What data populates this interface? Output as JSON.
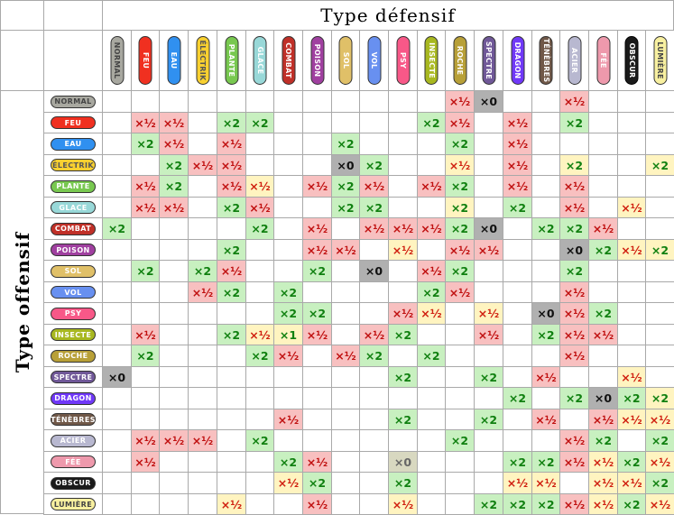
{
  "title_defense": "Type défensif",
  "title_attack": "Type offensif",
  "types": [
    {
      "label": "NORMAL",
      "color": "#a8a8a0",
      "text": "#444444"
    },
    {
      "label": "FEU",
      "color": "#f03020",
      "text": "#ffffff"
    },
    {
      "label": "EAU",
      "color": "#3090f0",
      "text": "#ffffff"
    },
    {
      "label": "ÉLECTRIK",
      "color": "#f8d030",
      "text": "#555555"
    },
    {
      "label": "PLANTE",
      "color": "#78c850",
      "text": "#ffffff"
    },
    {
      "label": "GLACE",
      "color": "#98d8d8",
      "text": "#ffffff"
    },
    {
      "label": "COMBAT",
      "color": "#c03028",
      "text": "#ffffff"
    },
    {
      "label": "POISON",
      "color": "#a040a0",
      "text": "#ffffff"
    },
    {
      "label": "SOL",
      "color": "#e0c068",
      "text": "#ffffff"
    },
    {
      "label": "VOL",
      "color": "#6890f0",
      "text": "#ffffff"
    },
    {
      "label": "PSY",
      "color": "#f85888",
      "text": "#ffffff"
    },
    {
      "label": "INSECTE",
      "color": "#a8b820",
      "text": "#ffffff"
    },
    {
      "label": "ROCHE",
      "color": "#b8a038",
      "text": "#ffffff"
    },
    {
      "label": "SPECTRE",
      "color": "#705898",
      "text": "#ffffff"
    },
    {
      "label": "DRAGON",
      "color": "#7038f8",
      "text": "#ffffff"
    },
    {
      "label": "TÉNÈBRES",
      "color": "#705848",
      "text": "#ffffff"
    },
    {
      "label": "ACIER",
      "color": "#b8b8d0",
      "text": "#ffffff"
    },
    {
      "label": "FÉE",
      "color": "#ee99ac",
      "text": "#ffffff"
    },
    {
      "label": "OBSCUR",
      "color": "#1a1a1a",
      "text": "#ffffff"
    },
    {
      "label": "LUMIÈRE",
      "color": "#f8f0a0",
      "text": "#444444"
    }
  ],
  "value_styles": {
    "r": {
      "bg": "#f8c0c0",
      "fg": "#c01010",
      "text": "×½"
    },
    "g": {
      "bg": "#c8f0c0",
      "fg": "#108010",
      "text": "×2"
    },
    "ry": {
      "bg": "#fff4c0",
      "fg": "#d02010",
      "text": "×½"
    },
    "gy": {
      "bg": "#fff4c0",
      "fg": "#108010",
      "text": "×2"
    },
    "g1": {
      "bg": "#fff4c0",
      "fg": "#108010",
      "text": "×1"
    },
    "z": {
      "bg": "#b0b0b0",
      "fg": "#111111",
      "text": "×0"
    },
    "zy": {
      "bg": "#d8d8c0",
      "fg": "#666666",
      "text": "×0"
    }
  },
  "rows": [
    [
      "",
      "",
      "",
      "",
      "",
      "",
      "",
      "",
      "",
      "",
      "",
      "",
      "r",
      "z",
      "",
      "",
      "r",
      "",
      "",
      ""
    ],
    [
      "",
      "r",
      "r",
      "",
      "g",
      "g",
      "",
      "",
      "",
      "",
      "",
      "g",
      "r",
      "",
      "r",
      "",
      "g",
      "",
      "",
      ""
    ],
    [
      "",
      "g",
      "r",
      "",
      "r",
      "",
      "",
      "",
      "g",
      "",
      "",
      "",
      "g",
      "",
      "r",
      "",
      "",
      "",
      "",
      ""
    ],
    [
      "",
      "",
      "g",
      "r",
      "r",
      "",
      "",
      "",
      "z",
      "g",
      "",
      "",
      "ry",
      "",
      "r",
      "",
      "gy",
      "",
      "",
      "gy"
    ],
    [
      "",
      "r",
      "g",
      "",
      "r",
      "ry",
      "",
      "r",
      "g",
      "r",
      "",
      "r",
      "g",
      "",
      "r",
      "",
      "r",
      "",
      "",
      ""
    ],
    [
      "",
      "r",
      "r",
      "",
      "g",
      "r",
      "",
      "",
      "g",
      "g",
      "",
      "",
      "gy",
      "",
      "g",
      "",
      "r",
      "",
      "ry",
      ""
    ],
    [
      "g",
      "",
      "",
      "",
      "",
      "g",
      "",
      "r",
      "",
      "r",
      "r",
      "r",
      "g",
      "z",
      "",
      "g",
      "g",
      "r",
      "",
      ""
    ],
    [
      "",
      "",
      "",
      "",
      "g",
      "",
      "",
      "r",
      "r",
      "",
      "ry",
      "",
      "r",
      "r",
      "",
      "",
      "z",
      "g",
      "ry",
      "gy"
    ],
    [
      "",
      "g",
      "",
      "g",
      "r",
      "",
      "",
      "g",
      "",
      "z",
      "",
      "r",
      "g",
      "",
      "",
      "",
      "g",
      "",
      "",
      ""
    ],
    [
      "",
      "",
      "",
      "r",
      "g",
      "",
      "g",
      "",
      "",
      "",
      "",
      "g",
      "r",
      "",
      "",
      "",
      "r",
      "",
      "",
      ""
    ],
    [
      "",
      "",
      "",
      "",
      "",
      "",
      "g",
      "g",
      "",
      "",
      "r",
      "ry",
      "",
      "ry",
      "",
      "z",
      "r",
      "g",
      "",
      ""
    ],
    [
      "",
      "r",
      "",
      "",
      "g",
      "ry",
      "g1",
      "r",
      "",
      "r",
      "g",
      "",
      "",
      "r",
      "",
      "g",
      "r",
      "r",
      "",
      ""
    ],
    [
      "",
      "g",
      "",
      "",
      "",
      "g",
      "r",
      "",
      "r",
      "g",
      "",
      "g",
      "",
      "",
      "",
      "",
      "r",
      "",
      "",
      ""
    ],
    [
      "z",
      "",
      "",
      "",
      "",
      "",
      "",
      "",
      "",
      "",
      "g",
      "",
      "",
      "g",
      "",
      "r",
      "",
      "",
      "ry",
      ""
    ],
    [
      "",
      "",
      "",
      "",
      "",
      "",
      "",
      "",
      "",
      "",
      "",
      "",
      "",
      "",
      "g",
      "",
      "g",
      "z",
      "g",
      "gy"
    ],
    [
      "",
      "",
      "",
      "",
      "",
      "",
      "r",
      "",
      "",
      "",
      "g",
      "",
      "",
      "g",
      "",
      "r",
      "",
      "r",
      "ry",
      "ry"
    ],
    [
      "",
      "r",
      "r",
      "r",
      "",
      "g",
      "",
      "",
      "",
      "",
      "",
      "",
      "g",
      "",
      "",
      "",
      "r",
      "g",
      "",
      "g"
    ],
    [
      "",
      "r",
      "",
      "",
      "",
      "",
      "g",
      "r",
      "",
      "",
      "zy",
      "",
      "",
      "",
      "g",
      "g",
      "r",
      "ry",
      "g",
      "ry"
    ],
    [
      "",
      "",
      "",
      "",
      "",
      "",
      "ry",
      "g",
      "",
      "",
      "g",
      "",
      "",
      "",
      "ry",
      "ry",
      "",
      "ry",
      "ry",
      "g"
    ],
    [
      "",
      "",
      "",
      "",
      "ry",
      "",
      "",
      "r",
      "",
      "",
      "ry",
      "",
      "",
      "g",
      "g",
      "g",
      "r",
      "ry",
      "g",
      "ry"
    ]
  ]
}
